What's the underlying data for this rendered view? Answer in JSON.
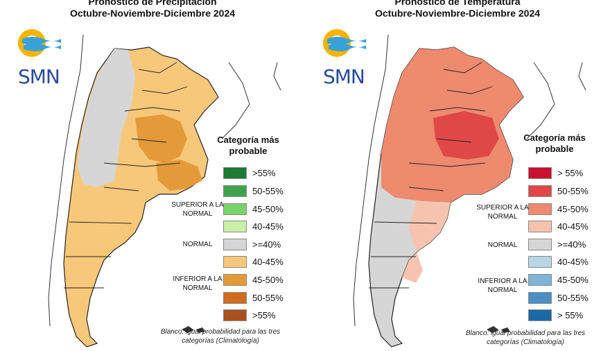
{
  "precipitation": {
    "title": "Pronóstico de Precipitación",
    "period": "Octubre-Noviembre-Diciembre 2024",
    "logo_text": "SMN",
    "legend_title": "Categoría más probable",
    "categories": {
      "superior": "SUPERIOR A LA NORMAL",
      "normal": "NORMAL",
      "inferior": "INFERIOR A LA NORMAL"
    },
    "legend": [
      {
        "label": ">55%",
        "color": "#1f7a33"
      },
      {
        "label": "50-55%",
        "color": "#3fa34d"
      },
      {
        "label": "45-50%",
        "color": "#7ad36a"
      },
      {
        "label": "40-45%",
        "color": "#c9f0a6"
      },
      {
        "label": ">=40%",
        "color": "#d6d6d6"
      },
      {
        "label": "40-45%",
        "color": "#f8c87a"
      },
      {
        "label": "45-50%",
        "color": "#e59a3a"
      },
      {
        "label": "50-55%",
        "color": "#d46a1e"
      },
      {
        "label": ">55%",
        "color": "#a8511c"
      }
    ],
    "note": "Blanco: igual probabilidad para las tres categorías (Climatología)"
  },
  "temperature": {
    "title": "Pronóstico de Temperatura",
    "period": "Octubre-Noviembre-Diciembre 2024",
    "logo_text": "SMN",
    "legend_title": "Categoría más probable",
    "categories": {
      "superior": "SUPERIOR A LA NORMAL",
      "normal": "NORMAL",
      "inferior": "INFERIOR A LA NORMAL"
    },
    "legend": [
      {
        "label": "> 55%",
        "color": "#c8102e"
      },
      {
        "label": "50-55%",
        "color": "#e04848"
      },
      {
        "label": "45-50%",
        "color": "#ee8a6e"
      },
      {
        "label": "40-45%",
        "color": "#f6c4ae"
      },
      {
        "label": ">=40%",
        "color": "#d6d6d6"
      },
      {
        "label": "40-45%",
        "color": "#b8d6e8"
      },
      {
        "label": "45-50%",
        "color": "#7fb4d6"
      },
      {
        "label": "50-55%",
        "color": "#4a90c4"
      },
      {
        "label": "> 55%",
        "color": "#1a6aaa"
      }
    ],
    "note": "Blanco: igual probabilidad para las tres categorías (Climatología)"
  },
  "colors": {
    "logo_yellow": "#f5b400",
    "logo_blue": "#3aa0d8",
    "border": "#222222"
  }
}
